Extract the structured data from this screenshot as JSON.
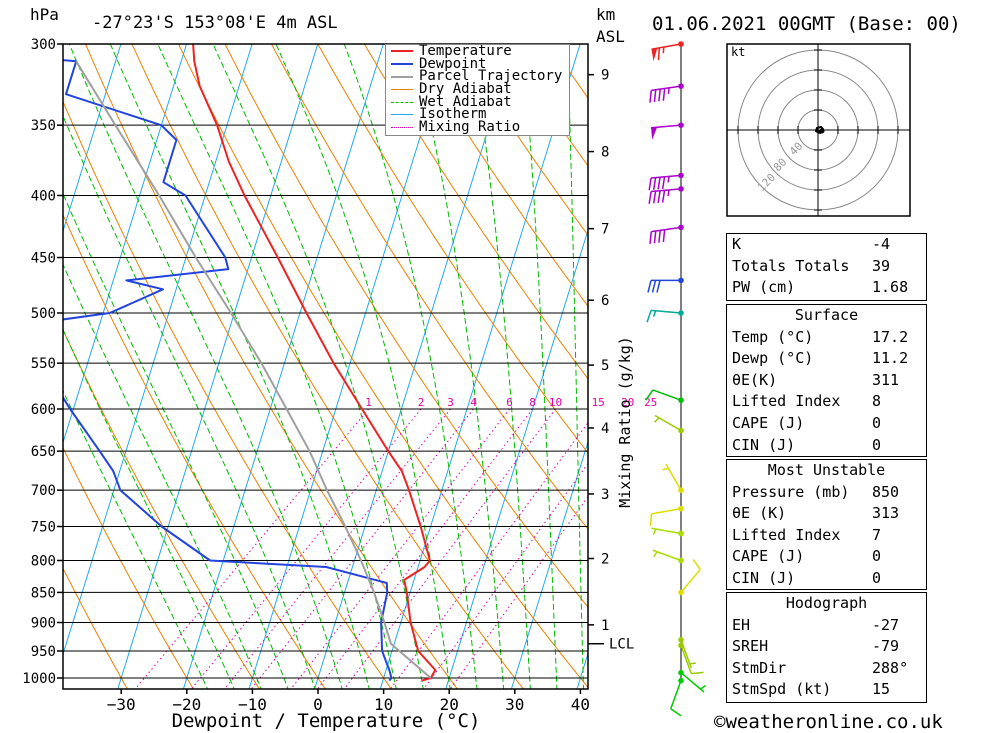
{
  "header": {
    "pressure_unit": "hPa",
    "location": "-27°23'S  153°08'E  4m  ASL",
    "km_label": "km",
    "asl_label": "ASL",
    "datetime": "01.06.2021  00GMT  (Base: 00)"
  },
  "footer": {
    "xlabel": "Dewpoint / Temperature (°C)",
    "credit": "©weatheronline.co.uk"
  },
  "colors": {
    "temperature": "#ee2222",
    "dewpoint": "#2244dd",
    "parcel": "#a0a0a0",
    "dry_adiabat": "#ee8000",
    "wet_adiabat": "#00bb00",
    "isotherm": "#22aaee",
    "mixing_ratio": "#dd00aa"
  },
  "chart_data": {
    "type": "skew-t log-p sounding",
    "pressure_ticks": [
      300,
      350,
      400,
      450,
      500,
      550,
      600,
      650,
      700,
      750,
      800,
      850,
      900,
      950,
      1000
    ],
    "temperature_ticks": [
      -30,
      -20,
      -10,
      0,
      10,
      20,
      30,
      40
    ],
    "km_ticks": [
      {
        "label": "9",
        "p": 318
      },
      {
        "label": "8",
        "p": 368
      },
      {
        "label": "7",
        "p": 426
      },
      {
        "label": "6",
        "p": 488
      },
      {
        "label": "5",
        "p": 552
      },
      {
        "label": "4",
        "p": 622
      },
      {
        "label": "3",
        "p": 705
      },
      {
        "label": "2",
        "p": 797
      },
      {
        "label": "1",
        "p": 904
      }
    ],
    "lcl": {
      "label": "LCL",
      "p": 937
    },
    "mixing_ratio_label": "Mixing Ratio (g/kg)",
    "mixing_ratios": [
      {
        "label": "1",
        "t600": -5.0
      },
      {
        "label": "2",
        "t600": 3.0
      },
      {
        "label": "3",
        "t600": 7.5
      },
      {
        "label": "4",
        "t600": 11.0
      },
      {
        "label": "6",
        "t600": 16.5
      },
      {
        "label": "8",
        "t600": 20.0
      },
      {
        "label": "10",
        "t600": 23.5
      },
      {
        "label": "15",
        "t600": 30.0
      },
      {
        "label": "20",
        "t600": 34.5
      },
      {
        "label": "25",
        "t600": 38.0
      }
    ],
    "legend": [
      "Temperature",
      "Dewpoint",
      "Parcel Trajectory",
      "Dry Adiabat",
      "Wet Adiabat",
      "Isotherm",
      "Mixing Ratio"
    ],
    "series": [
      {
        "name": "Temperature",
        "points": [
          [
            1005,
            16.0
          ],
          [
            1000,
            17.2
          ],
          [
            985,
            17.5
          ],
          [
            950,
            14.0
          ],
          [
            900,
            11.5
          ],
          [
            850,
            9.5
          ],
          [
            830,
            8.5
          ],
          [
            810,
            11.0
          ],
          [
            800,
            11.5
          ],
          [
            750,
            8.5
          ],
          [
            700,
            5.0
          ],
          [
            675,
            3.0
          ],
          [
            650,
            0.0
          ],
          [
            600,
            -6.0
          ],
          [
            550,
            -12.5
          ],
          [
            500,
            -19.0
          ],
          [
            450,
            -26.0
          ],
          [
            400,
            -34.0
          ],
          [
            375,
            -38.0
          ],
          [
            350,
            -41.5
          ],
          [
            325,
            -46.0
          ],
          [
            310,
            -48.0
          ],
          [
            300,
            -49.0
          ]
        ]
      },
      {
        "name": "Dewpoint",
        "points": [
          [
            1005,
            11.0
          ],
          [
            1000,
            11.2
          ],
          [
            985,
            10.5
          ],
          [
            950,
            8.5
          ],
          [
            900,
            7.0
          ],
          [
            850,
            6.5
          ],
          [
            835,
            6.0
          ],
          [
            810,
            -4.0
          ],
          [
            800,
            -22.0
          ],
          [
            750,
            -31.0
          ],
          [
            700,
            -39.0
          ],
          [
            675,
            -41.0
          ],
          [
            650,
            -44.0
          ],
          [
            600,
            -50.5
          ],
          [
            550,
            -57.0
          ],
          [
            510,
            -60.0
          ],
          [
            500,
            -49.0
          ],
          [
            478,
            -42.0
          ],
          [
            470,
            -48.0
          ],
          [
            460,
            -33.0
          ],
          [
            450,
            -34.0
          ],
          [
            400,
            -43.0
          ],
          [
            390,
            -47.0
          ],
          [
            360,
            -47.0
          ],
          [
            350,
            -50.0
          ],
          [
            330,
            -66.0
          ],
          [
            310,
            -66.0
          ],
          [
            305,
            -81.0
          ],
          [
            300,
            -83.0
          ]
        ]
      },
      {
        "name": "Parcel Trajectory",
        "points": [
          [
            1000,
            17.2
          ],
          [
            937,
            9.5
          ],
          [
            900,
            7.5
          ],
          [
            850,
            4.5
          ],
          [
            800,
            1.0
          ],
          [
            750,
            -3.0
          ],
          [
            700,
            -7.5
          ],
          [
            650,
            -12.0
          ],
          [
            600,
            -17.5
          ],
          [
            550,
            -23.5
          ],
          [
            500,
            -30.5
          ],
          [
            450,
            -38.5
          ],
          [
            400,
            -47.0
          ],
          [
            350,
            -57.0
          ],
          [
            310,
            -66.0
          ]
        ]
      }
    ],
    "wind_barbs": [
      {
        "p": 300,
        "dir": 260,
        "speed": 65,
        "color": "#ee2222"
      },
      {
        "p": 325,
        "dir": 262,
        "speed": 45,
        "color": "#aa00cc"
      },
      {
        "p": 350,
        "dir": 265,
        "speed": 50,
        "color": "#aa00cc"
      },
      {
        "p": 385,
        "dir": 265,
        "speed": 45,
        "color": "#aa00cc"
      },
      {
        "p": 395,
        "dir": 265,
        "speed": 45,
        "color": "#aa00cc"
      },
      {
        "p": 425,
        "dir": 262,
        "speed": 40,
        "color": "#aa00cc"
      },
      {
        "p": 470,
        "dir": 270,
        "speed": 30,
        "color": "#2244dd"
      },
      {
        "p": 500,
        "dir": 275,
        "speed": 15,
        "color": "#00aa99"
      },
      {
        "p": 590,
        "dir": 290,
        "speed": 10,
        "color": "#00bb00"
      },
      {
        "p": 625,
        "dir": 300,
        "speed": 5,
        "color": "#99cc00"
      },
      {
        "p": 700,
        "dir": 330,
        "speed": 5,
        "color": "#dddd00"
      },
      {
        "p": 725,
        "dir": 260,
        "speed": 10,
        "color": "#dddd00"
      },
      {
        "p": 760,
        "dir": 280,
        "speed": 5,
        "color": "#aadd00"
      },
      {
        "p": 800,
        "dir": 290,
        "speed": 5,
        "color": "#aadd00"
      },
      {
        "p": 850,
        "dir": 40,
        "speed": 10,
        "color": "#dddd00"
      },
      {
        "p": 930,
        "dir": 160,
        "speed": 5,
        "color": "#99cc00"
      },
      {
        "p": 940,
        "dir": 160,
        "speed": 10,
        "color": "#99cc00"
      },
      {
        "p": 990,
        "dir": 130,
        "speed": 5,
        "color": "#00cc00"
      },
      {
        "p": 1005,
        "dir": 200,
        "speed": 10,
        "color": "#00cc00"
      }
    ],
    "hodograph": {
      "unit": "kt",
      "ring_labels": [
        "40",
        "80",
        "120"
      ],
      "points": [
        [
          0,
          0
        ],
        [
          2,
          3
        ],
        [
          4,
          2
        ],
        [
          5,
          -1
        ],
        [
          3,
          -3
        ],
        [
          -1,
          -2
        ],
        [
          -2,
          1
        ],
        [
          1,
          3
        ]
      ]
    }
  },
  "indices": {
    "general": [
      {
        "label": "K",
        "value": "-4"
      },
      {
        "label": "Totals Totals",
        "value": "39"
      },
      {
        "label": "PW (cm)",
        "value": "1.68"
      }
    ],
    "surface": {
      "title": "Surface",
      "rows": [
        {
          "label": "Temp (°C)",
          "value": "17.2"
        },
        {
          "label": "Dewp (°C)",
          "value": "11.2"
        },
        {
          "label": "θE(K)",
          "value": "311"
        },
        {
          "label": "Lifted Index",
          "value": "8"
        },
        {
          "label": "CAPE (J)",
          "value": "0"
        },
        {
          "label": "CIN (J)",
          "value": "0"
        }
      ]
    },
    "most_unstable": {
      "title": "Most Unstable",
      "rows": [
        {
          "label": "Pressure (mb)",
          "value": "850"
        },
        {
          "label": "θE (K)",
          "value": "313"
        },
        {
          "label": "Lifted Index",
          "value": "7"
        },
        {
          "label": "CAPE (J)",
          "value": "0"
        },
        {
          "label": "CIN (J)",
          "value": "0"
        }
      ]
    },
    "hodograph": {
      "title": "Hodograph",
      "rows": [
        {
          "label": "EH",
          "value": "-27"
        },
        {
          "label": "SREH",
          "value": "-79"
        },
        {
          "label": "StmDir",
          "value": "288°"
        },
        {
          "label": "StmSpd (kt)",
          "value": "15"
        }
      ]
    }
  }
}
